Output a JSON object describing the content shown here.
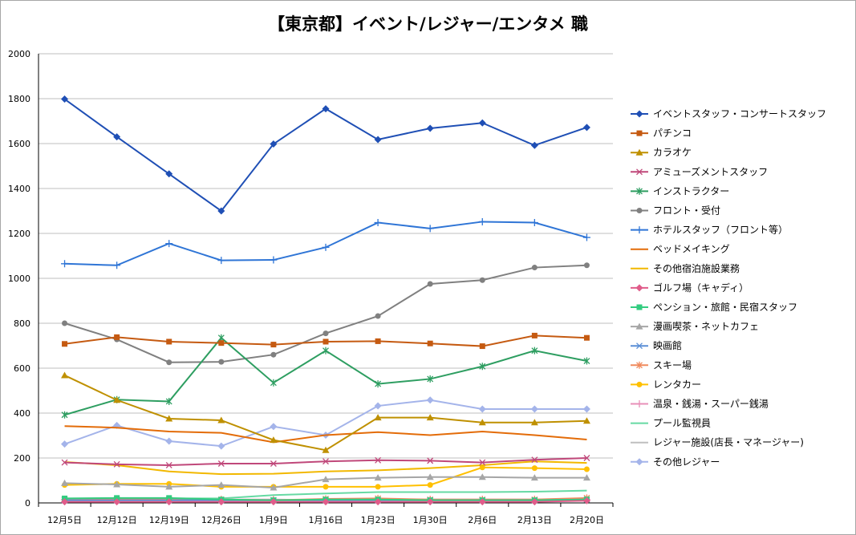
{
  "chart_data": {
    "type": "line",
    "title": "【東京都】イベント/レジャー/エンタメ 職",
    "xlabel": "",
    "ylabel": "",
    "ylim": [
      0,
      2000
    ],
    "yticks": [
      0,
      200,
      400,
      600,
      800,
      1000,
      1200,
      1400,
      1600,
      1800,
      2000
    ],
    "grid": "horizontal",
    "legend_position": "right",
    "categories": [
      "12月5日",
      "12月12日",
      "12月19日",
      "12月26日",
      "1月9日",
      "1月16日",
      "1月23日",
      "1月30日",
      "2月6日",
      "2月13日",
      "2月20日"
    ],
    "series": [
      {
        "name": "イベントスタッフ・コンサートスタッフ",
        "color": "#1f4fb5",
        "marker": "diamond",
        "values": [
          1798,
          1630,
          1465,
          1300,
          1598,
          1755,
          1618,
          1668,
          1692,
          1592,
          1672
        ]
      },
      {
        "name": "パチンコ",
        "color": "#c55a11",
        "marker": "square",
        "values": [
          708,
          738,
          718,
          712,
          705,
          718,
          720,
          710,
          698,
          745,
          735
        ]
      },
      {
        "name": "カラオケ",
        "color": "#bf9000",
        "marker": "triangle",
        "values": [
          568,
          458,
          375,
          368,
          280,
          235,
          380,
          380,
          358,
          358,
          365
        ]
      },
      {
        "name": "アミューズメントスタッフ",
        "color": "#c0487a",
        "marker": "x",
        "values": [
          180,
          172,
          168,
          175,
          175,
          185,
          190,
          188,
          180,
          192,
          200
        ]
      },
      {
        "name": "インストラクター",
        "color": "#2e9e61",
        "marker": "asterisk",
        "values": [
          392,
          460,
          452,
          735,
          535,
          678,
          530,
          552,
          608,
          678,
          632
        ]
      },
      {
        "name": "フロント・受付",
        "color": "#808080",
        "marker": "circle",
        "values": [
          800,
          728,
          626,
          628,
          660,
          755,
          832,
          975,
          992,
          1048,
          1058
        ]
      },
      {
        "name": "ホテルスタッフ（フロント等）",
        "color": "#2f75d6",
        "marker": "plus",
        "values": [
          1065,
          1058,
          1155,
          1080,
          1082,
          1138,
          1248,
          1222,
          1252,
          1248,
          1182
        ]
      },
      {
        "name": "ベッドメイキング",
        "color": "#e36c09",
        "marker": "none",
        "values": [
          342,
          335,
          318,
          312,
          270,
          302,
          315,
          302,
          318,
          302,
          282
        ]
      },
      {
        "name": "その他宿泊施設業務",
        "color": "#f2b800",
        "marker": "none",
        "values": [
          182,
          168,
          140,
          128,
          130,
          140,
          145,
          155,
          168,
          185,
          178
        ]
      },
      {
        "name": "ゴルフ場（キャディ）",
        "color": "#e05c8a",
        "marker": "diamond",
        "values": [
          5,
          5,
          5,
          5,
          5,
          5,
          5,
          5,
          5,
          5,
          10
        ]
      },
      {
        "name": "ペンション・旅館・民宿スタッフ",
        "color": "#33cc80",
        "marker": "square",
        "values": [
          20,
          22,
          22,
          15,
          12,
          15,
          15,
          12,
          12,
          12,
          15
        ]
      },
      {
        "name": "漫画喫茶・ネットカフェ",
        "color": "#a6a6a6",
        "marker": "triangle",
        "values": [
          88,
          82,
          72,
          80,
          68,
          105,
          112,
          115,
          115,
          112,
          112
        ]
      },
      {
        "name": "映画館",
        "color": "#5b8fd6",
        "marker": "x",
        "values": [
          12,
          12,
          12,
          12,
          12,
          12,
          12,
          12,
          12,
          12,
          15
        ]
      },
      {
        "name": "スキー場",
        "color": "#f08a5d",
        "marker": "asterisk",
        "values": [
          15,
          15,
          15,
          15,
          12,
          18,
          20,
          15,
          15,
          15,
          22
        ]
      },
      {
        "name": "レンタカー",
        "color": "#ffc000",
        "marker": "circle",
        "values": [
          80,
          85,
          85,
          72,
          72,
          72,
          72,
          80,
          158,
          155,
          150
        ]
      },
      {
        "name": "温泉・銭湯・スーパー銭湯",
        "color": "#e88fb8",
        "marker": "plus",
        "values": [
          15,
          15,
          15,
          15,
          15,
          12,
          15,
          15,
          15,
          15,
          15
        ]
      },
      {
        "name": "プール監視員",
        "color": "#66d9a3",
        "marker": "none",
        "values": [
          15,
          18,
          20,
          20,
          35,
          42,
          48,
          48,
          48,
          50,
          55
        ]
      },
      {
        "name": "レジャー施設(店長・マネージャー)",
        "color": "#bfbfbf",
        "marker": "none",
        "values": [
          10,
          12,
          12,
          12,
          12,
          12,
          12,
          12,
          12,
          12,
          12
        ]
      },
      {
        "name": "その他レジャー",
        "color": "#a4b4ea",
        "marker": "diamond",
        "values": [
          262,
          345,
          275,
          253,
          340,
          302,
          432,
          458,
          418,
          418,
          418
        ]
      }
    ]
  }
}
